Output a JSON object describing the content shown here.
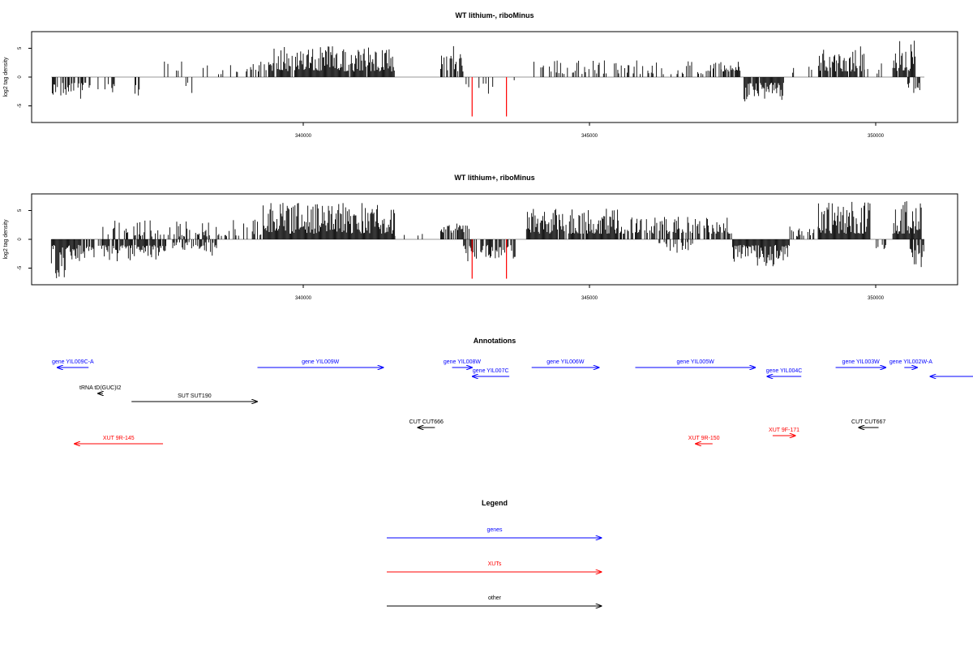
{
  "colors": {
    "default": "#000000",
    "highlight": "#ff0000",
    "gene": "#0000ff",
    "xut": "#ff0000",
    "other": "#000000",
    "baseline": "#999999"
  },
  "chart_data": [
    {
      "type": "bar",
      "title": "WT lithium-, riboMinus",
      "xlabel": "",
      "ylabel": "log2 tag density",
      "xlim": [
        335300,
        351300
      ],
      "ylim": [
        -7.5,
        7.5
      ],
      "xticks": [
        "340000",
        "345000",
        "350000"
      ],
      "yticks": [
        "-5",
        "0",
        "5"
      ],
      "grid": false,
      "highlighted_bars": [
        {
          "x": 342950,
          "value": -7
        },
        {
          "x": 343550,
          "value": -7
        }
      ],
      "series": [
        {
          "values_description": "",
          "segments": [
            {
              "start": 335600,
              "end": 336300,
              "density": 0.6,
              "sign": -1,
              "min": 1,
              "max": 4
            },
            {
              "start": 336400,
              "end": 337200,
              "density": 0.15,
              "sign": -1,
              "min": 1,
              "max": 3.5
            },
            {
              "start": 337500,
              "end": 338200,
              "density": 0.12,
              "sign": -1,
              "min": 1,
              "max": 3
            },
            {
              "start": 337200,
              "end": 338900,
              "density": 0.1,
              "sign": 1,
              "min": 0.5,
              "max": 3
            },
            {
              "start": 338900,
              "end": 339400,
              "density": 0.3,
              "sign": 1,
              "min": 1,
              "max": 3
            },
            {
              "start": 339400,
              "end": 341600,
              "density": 0.95,
              "sign": 1,
              "min": 1,
              "max": 5.5
            },
            {
              "start": 342400,
              "end": 342800,
              "density": 0.9,
              "sign": 1,
              "min": 1,
              "max": 5.5
            },
            {
              "start": 342800,
              "end": 343700,
              "density": 0.12,
              "sign": -1,
              "min": 0.5,
              "max": 3
            },
            {
              "start": 344000,
              "end": 345300,
              "density": 0.35,
              "sign": 1,
              "min": 0.5,
              "max": 3
            },
            {
              "start": 345300,
              "end": 347300,
              "density": 0.3,
              "sign": 1,
              "min": 0.5,
              "max": 3
            },
            {
              "start": 347300,
              "end": 347700,
              "density": 0.6,
              "sign": 1,
              "min": 1,
              "max": 3
            },
            {
              "start": 347700,
              "end": 348400,
              "density": 0.9,
              "sign": -1,
              "min": 1,
              "max": 4.5
            },
            {
              "start": 348400,
              "end": 349000,
              "density": 0.1,
              "sign": 1,
              "min": 0.5,
              "max": 2
            },
            {
              "start": 349000,
              "end": 349800,
              "density": 0.8,
              "sign": 1,
              "min": 1,
              "max": 5.5
            },
            {
              "start": 349800,
              "end": 350100,
              "density": 0.3,
              "sign": 1,
              "min": 0.5,
              "max": 2.5
            },
            {
              "start": 350300,
              "end": 350700,
              "density": 0.9,
              "sign": 1,
              "min": 1,
              "max": 6.5
            },
            {
              "start": 350500,
              "end": 350800,
              "density": 0.5,
              "sign": -1,
              "min": 1,
              "max": 3
            }
          ]
        }
      ]
    },
    {
      "type": "bar",
      "title": "WT lithium+, riboMinus",
      "xlabel": "",
      "ylabel": "log2 tag density",
      "xlim": [
        335300,
        351300
      ],
      "ylim": [
        -7.5,
        7.5
      ],
      "xticks": [
        "340000",
        "345000",
        "350000"
      ],
      "yticks": [
        "-5",
        "0",
        "5"
      ],
      "grid": false,
      "highlighted_bars": [
        {
          "x": 342950,
          "value": -7
        },
        {
          "x": 343550,
          "value": -7
        }
      ],
      "series": [
        {
          "values_description": "",
          "segments": [
            {
              "start": 335600,
              "end": 336000,
              "density": 1.0,
              "sign": -1,
              "min": 1,
              "max": 7
            },
            {
              "start": 336000,
              "end": 337600,
              "density": 0.75,
              "sign": -1,
              "min": 1,
              "max": 4
            },
            {
              "start": 337600,
              "end": 338500,
              "density": 0.45,
              "sign": -1,
              "min": 0.5,
              "max": 3
            },
            {
              "start": 336500,
              "end": 339300,
              "density": 0.35,
              "sign": 1,
              "min": 0.5,
              "max": 3.5
            },
            {
              "start": 339300,
              "end": 341600,
              "density": 1.0,
              "sign": 1,
              "min": 1,
              "max": 6.5
            },
            {
              "start": 341600,
              "end": 342100,
              "density": 0.2,
              "sign": 1,
              "min": 0.5,
              "max": 2
            },
            {
              "start": 342400,
              "end": 342900,
              "density": 0.8,
              "sign": 1,
              "min": 1,
              "max": 3
            },
            {
              "start": 342800,
              "end": 343700,
              "density": 0.7,
              "sign": -1,
              "min": 1,
              "max": 4
            },
            {
              "start": 343900,
              "end": 345500,
              "density": 0.9,
              "sign": 1,
              "min": 1,
              "max": 5.5
            },
            {
              "start": 345500,
              "end": 347500,
              "density": 0.6,
              "sign": 1,
              "min": 1,
              "max": 4
            },
            {
              "start": 346200,
              "end": 346800,
              "density": 0.3,
              "sign": -1,
              "min": 0.5,
              "max": 2.5
            },
            {
              "start": 347500,
              "end": 348500,
              "density": 1.0,
              "sign": -1,
              "min": 1,
              "max": 5
            },
            {
              "start": 348500,
              "end": 349000,
              "density": 0.3,
              "sign": 1,
              "min": 0.5,
              "max": 2.5
            },
            {
              "start": 349000,
              "end": 349900,
              "density": 1.0,
              "sign": 1,
              "min": 1,
              "max": 7
            },
            {
              "start": 349800,
              "end": 350200,
              "density": 0.5,
              "sign": -1,
              "min": 0.5,
              "max": 2.5
            },
            {
              "start": 350300,
              "end": 350800,
              "density": 1.0,
              "sign": 1,
              "min": 1,
              "max": 7
            },
            {
              "start": 350600,
              "end": 350850,
              "density": 0.8,
              "sign": -1,
              "min": 1,
              "max": 6
            }
          ]
        }
      ]
    }
  ],
  "annotations": {
    "title": "Annotations",
    "features": [
      {
        "label": "gene YIL009C-A",
        "category": "gene",
        "strand": "-",
        "start": 335700,
        "end": 336250,
        "row": 0
      },
      {
        "label": "gene YIL009W",
        "category": "gene",
        "strand": "+",
        "start": 339200,
        "end": 341400,
        "row": 0
      },
      {
        "label": "gene YIL008W",
        "category": "gene",
        "strand": "+",
        "start": 342600,
        "end": 342950,
        "row": 0
      },
      {
        "label": "gene YIL007C",
        "category": "gene",
        "strand": "-",
        "start": 342950,
        "end": 343600,
        "row": 1
      },
      {
        "label": "gene YIL006W",
        "category": "gene",
        "strand": "+",
        "start": 343990,
        "end": 345170,
        "row": 0
      },
      {
        "label": "gene YIL005W",
        "category": "gene",
        "strand": "+",
        "start": 345800,
        "end": 347900,
        "row": 0
      },
      {
        "label": "gene YIL004C",
        "category": "gene",
        "strand": "-",
        "start": 348100,
        "end": 348700,
        "row": 1
      },
      {
        "label": "gene YIL003W",
        "category": "gene",
        "strand": "+",
        "start": 349300,
        "end": 350180,
        "row": 0
      },
      {
        "label": "gene YIL002W-A",
        "category": "gene",
        "strand": "+",
        "start": 350500,
        "end": 350730,
        "row": 0
      },
      {
        "label": "",
        "category": "gene",
        "strand": "-",
        "start": 350950,
        "end": 351800,
        "row": 1
      },
      {
        "label": "tRNA tD(GUC)I2",
        "category": "other",
        "strand": "-",
        "start": 336410,
        "end": 336500,
        "row": 2
      },
      {
        "label": "SUT SUT190",
        "category": "other",
        "strand": "+",
        "start": 337000,
        "end": 339200,
        "row": 3
      },
      {
        "label": "CUT CUT666",
        "category": "other",
        "strand": "-",
        "start": 342000,
        "end": 342300,
        "row": 4
      },
      {
        "label": "CUT CUT667",
        "category": "other",
        "strand": "-",
        "start": 349700,
        "end": 350050,
        "row": 4
      },
      {
        "label": "XUT 9R-145",
        "category": "xut",
        "strand": "-",
        "start": 336000,
        "end": 337550,
        "row": 6
      },
      {
        "label": "XUT 9R-150",
        "category": "xut",
        "strand": "-",
        "start": 346850,
        "end": 347150,
        "row": 6
      },
      {
        "label": "XUT 9F-171",
        "category": "xut",
        "strand": "+",
        "start": 348200,
        "end": 348600,
        "row": 5
      }
    ]
  },
  "legend": {
    "title": "Legend",
    "items": [
      {
        "label": "genes",
        "category": "gene"
      },
      {
        "label": "XUTs",
        "category": "xut"
      },
      {
        "label": "other",
        "category": "other"
      }
    ]
  }
}
